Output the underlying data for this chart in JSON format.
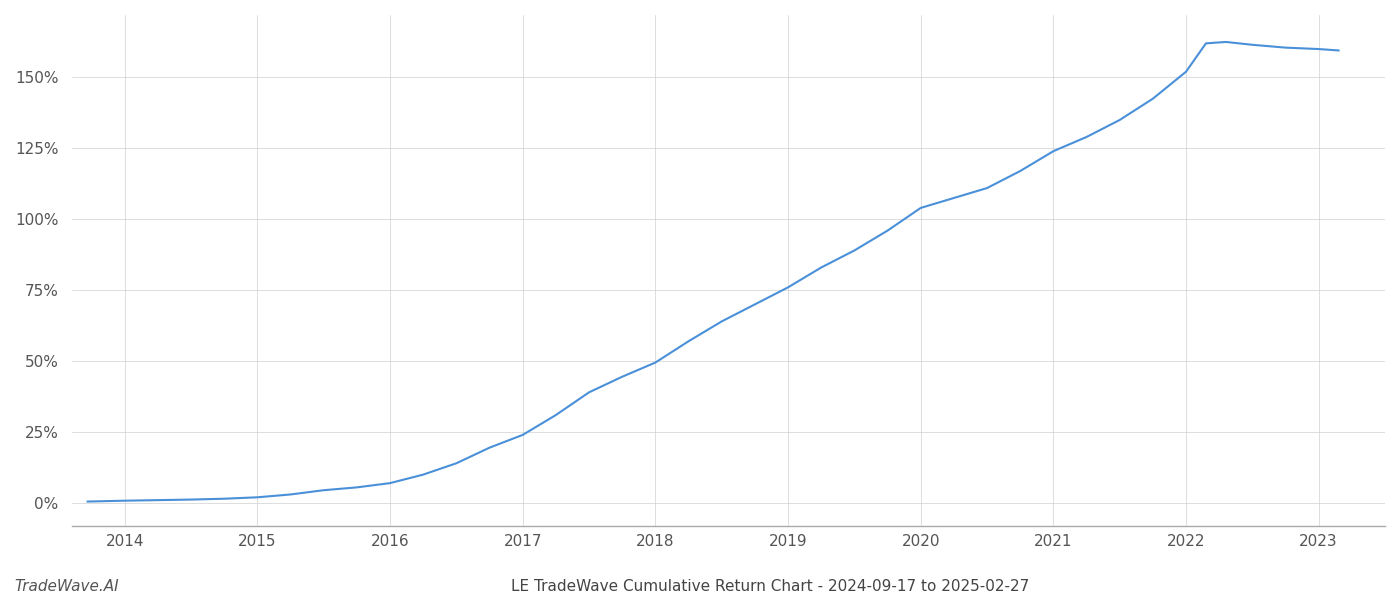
{
  "x_values": [
    2013.72,
    2014.0,
    2014.25,
    2014.5,
    2014.75,
    2015.0,
    2015.25,
    2015.5,
    2015.75,
    2016.0,
    2016.25,
    2016.5,
    2016.75,
    2017.0,
    2017.25,
    2017.5,
    2017.75,
    2018.0,
    2018.25,
    2018.5,
    2018.75,
    2019.0,
    2019.25,
    2019.5,
    2019.75,
    2020.0,
    2020.25,
    2020.5,
    2020.75,
    2021.0,
    2021.25,
    2021.5,
    2021.75,
    2022.0,
    2022.15,
    2022.3,
    2022.5,
    2022.75,
    2023.0,
    2023.15
  ],
  "y_values": [
    0.5,
    0.8,
    1.0,
    1.2,
    1.5,
    2.0,
    3.0,
    4.5,
    5.5,
    7.0,
    10.0,
    14.0,
    19.5,
    24.0,
    31.0,
    39.0,
    44.5,
    49.5,
    57.0,
    64.0,
    70.0,
    76.0,
    83.0,
    89.0,
    96.0,
    104.0,
    107.5,
    111.0,
    117.0,
    124.0,
    129.0,
    135.0,
    142.5,
    152.0,
    162.0,
    162.5,
    161.5,
    160.5,
    160.0,
    159.5
  ],
  "line_color": "#4A90D9",
  "line_width": 1.5,
  "background_color": "#ffffff",
  "grid_color": "#cccccc",
  "title": "LE TradeWave Cumulative Return Chart - 2024-09-17 to 2025-02-27",
  "watermark": "TradeWave.AI",
  "ytick_labels": [
    "0%",
    "25%",
    "50%",
    "75%",
    "100%",
    "125%",
    "150%"
  ],
  "ytick_values": [
    0,
    25,
    50,
    75,
    100,
    125,
    150
  ],
  "xtick_labels": [
    "2014",
    "2015",
    "2016",
    "2017",
    "2018",
    "2019",
    "2020",
    "2021",
    "2022",
    "2023"
  ],
  "xtick_values": [
    2014,
    2015,
    2016,
    2017,
    2018,
    2019,
    2020,
    2021,
    2022,
    2023
  ],
  "xlim": [
    2013.6,
    2023.5
  ],
  "ylim": [
    -8,
    172
  ]
}
